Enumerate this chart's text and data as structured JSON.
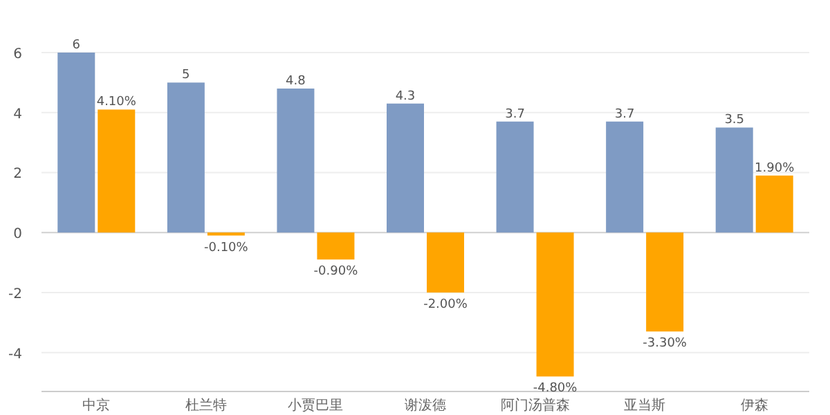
{
  "chart_data": {
    "type": "bar",
    "categories": [
      "中京",
      "杜兰特",
      "小贾巴里",
      "谢泼德",
      "阿门汤普森",
      "亚当斯",
      "伊森"
    ],
    "series": [
      {
        "color": "#7f9bc4",
        "values": [
          6,
          5,
          4.8,
          4.3,
          3.7,
          3.7,
          3.5
        ],
        "value_labels": [
          "6",
          "5",
          "4.8",
          "4.3",
          "3.7",
          "3.7",
          "3.5"
        ]
      },
      {
        "color": "#ffa500",
        "values": [
          4.1,
          -0.1,
          -0.9,
          -2.0,
          -4.8,
          -3.3,
          1.9
        ],
        "value_labels": [
          "4.10%",
          "-0.10%",
          "-0.90%",
          "-2.00%",
          "-4.80%",
          "-3.30%",
          "1.90%"
        ]
      }
    ],
    "ylim": [
      -5.3,
      6
    ],
    "yticks": [
      -4,
      -2,
      0,
      2,
      4,
      6
    ],
    "grid": "y"
  }
}
